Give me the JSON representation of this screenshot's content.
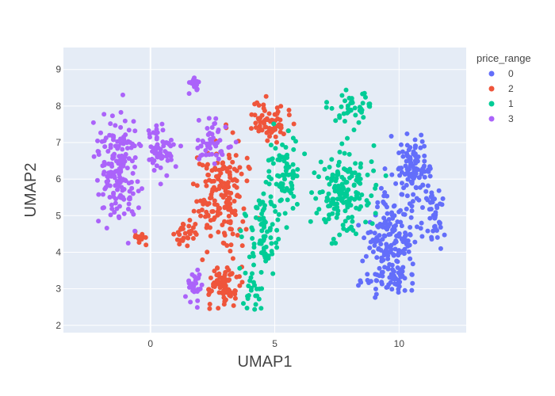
{
  "chart_data": {
    "type": "scatter",
    "xlabel": "UMAP1",
    "ylabel": "UMAP2",
    "xlim": [
      -3.5,
      12.7
    ],
    "ylim": [
      1.8,
      9.6
    ],
    "x_ticks": [
      0,
      5,
      10
    ],
    "y_ticks": [
      2,
      3,
      4,
      5,
      6,
      7,
      8,
      9
    ],
    "x_tick_labels": [
      "0",
      "5",
      "10"
    ],
    "y_tick_labels": [
      "2",
      "3",
      "4",
      "5",
      "6",
      "7",
      "8",
      "9"
    ],
    "grid": true,
    "plot_background": "#E5ECF6",
    "legend": {
      "title": "price_range",
      "placement": "top-right",
      "entries": [
        "0",
        "2",
        "1",
        "3"
      ]
    },
    "series": [
      {
        "name": "0",
        "color": "#636EFA",
        "clusters": [
          {
            "cx": 9.8,
            "cy": 4.3,
            "sx": 1.0,
            "sy": 1.0,
            "n": 160
          },
          {
            "cx": 10.6,
            "cy": 6.3,
            "sx": 0.8,
            "sy": 0.8,
            "n": 110
          },
          {
            "cx": 9.6,
            "cy": 3.2,
            "sx": 1.0,
            "sy": 0.35,
            "n": 50
          },
          {
            "cx": 11.4,
            "cy": 5.0,
            "sx": 0.4,
            "sy": 0.7,
            "n": 40
          }
        ]
      },
      {
        "name": "2",
        "color": "#EF553B",
        "clusters": [
          {
            "cx": 2.9,
            "cy": 5.5,
            "sx": 0.9,
            "sy": 1.3,
            "n": 170
          },
          {
            "cx": 3.0,
            "cy": 3.1,
            "sx": 0.6,
            "sy": 0.5,
            "n": 70
          },
          {
            "cx": 4.8,
            "cy": 7.5,
            "sx": 0.8,
            "sy": 0.5,
            "n": 70
          },
          {
            "cx": 1.3,
            "cy": 4.5,
            "sx": 0.5,
            "sy": 0.3,
            "n": 30
          },
          {
            "cx": -0.4,
            "cy": 4.4,
            "sx": 0.3,
            "sy": 0.2,
            "n": 15
          }
        ]
      },
      {
        "name": "1",
        "color": "#00CC96",
        "clusters": [
          {
            "cx": 7.8,
            "cy": 5.6,
            "sx": 1.1,
            "sy": 1.1,
            "n": 160
          },
          {
            "cx": 5.3,
            "cy": 6.2,
            "sx": 0.6,
            "sy": 0.8,
            "n": 70
          },
          {
            "cx": 4.6,
            "cy": 4.5,
            "sx": 0.7,
            "sy": 0.9,
            "n": 80
          },
          {
            "cx": 8.2,
            "cy": 8.0,
            "sx": 0.7,
            "sy": 0.4,
            "n": 40
          },
          {
            "cx": 4.2,
            "cy": 3.0,
            "sx": 0.4,
            "sy": 0.4,
            "n": 20
          }
        ]
      },
      {
        "name": "3",
        "color": "#AB63FA",
        "clusters": [
          {
            "cx": -1.3,
            "cy": 6.2,
            "sx": 0.8,
            "sy": 1.4,
            "n": 170
          },
          {
            "cx": 0.5,
            "cy": 6.8,
            "sx": 0.5,
            "sy": 0.7,
            "n": 60
          },
          {
            "cx": 2.5,
            "cy": 7.0,
            "sx": 0.6,
            "sy": 0.6,
            "n": 50
          },
          {
            "cx": 1.8,
            "cy": 3.0,
            "sx": 0.4,
            "sy": 0.4,
            "n": 30
          },
          {
            "cx": 1.8,
            "cy": 8.6,
            "sx": 0.3,
            "sy": 0.2,
            "n": 15
          }
        ]
      }
    ]
  }
}
